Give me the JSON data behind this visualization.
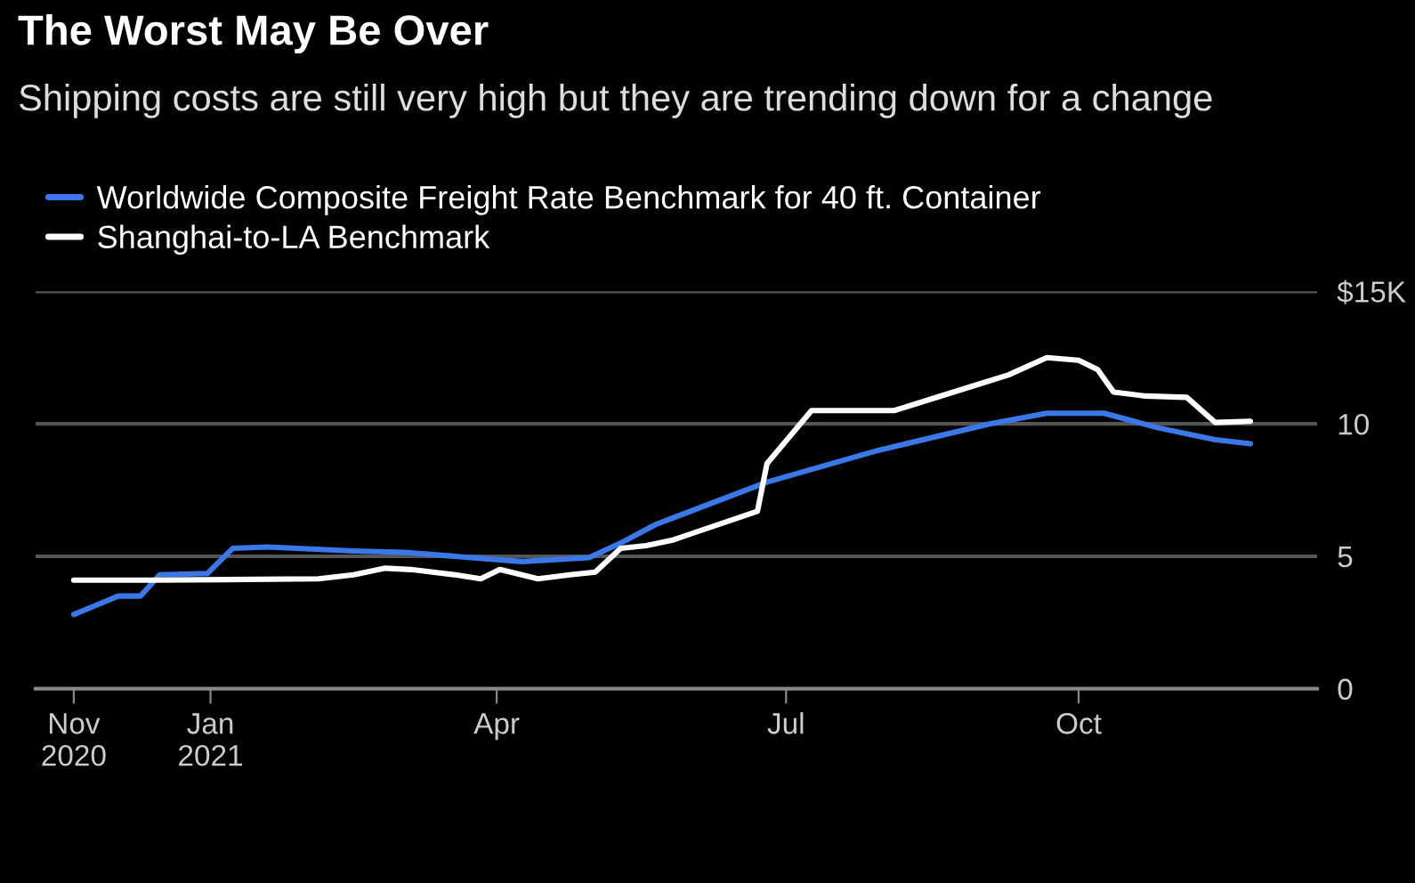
{
  "chart_data": {
    "type": "line",
    "title": "The Worst May Be Over",
    "subtitle": "Shipping costs are still very high but they are trending down for a change",
    "series": [
      {
        "name": "Worldwide Composite Freight Rate Benchmark for 40 ft. Container",
        "color": "#3a78e8",
        "x": [
          "2020-11-19",
          "2020-11-25",
          "2020-12-03",
          "2020-12-10",
          "2020-12-16",
          "2020-12-31",
          "2021-01-08",
          "2021-01-19",
          "2021-02-15",
          "2021-03-03",
          "2021-03-24",
          "2021-04-09",
          "2021-04-30",
          "2021-05-10",
          "2021-05-21",
          "2021-06-25",
          "2021-07-30",
          "2021-09-03",
          "2021-09-21",
          "2021-10-09",
          "2021-10-26",
          "2021-11-13",
          "2021-11-24"
        ],
        "values": [
          2.8,
          3.1,
          3.5,
          3.5,
          4.3,
          4.35,
          5.3,
          5.35,
          5.2,
          5.15,
          4.95,
          4.8,
          4.95,
          5.5,
          6.2,
          7.8,
          9.0,
          10.0,
          10.4,
          10.4,
          9.85,
          9.4,
          9.25
        ]
      },
      {
        "name": "Shanghai-to-LA Benchmark",
        "color": "#ffffff",
        "x": [
          "2020-11-19",
          "2020-12-14",
          "2021-02-04",
          "2021-02-15",
          "2021-02-25",
          "2021-03-05",
          "2021-03-19",
          "2021-03-27",
          "2021-04-02",
          "2021-04-14",
          "2021-04-24",
          "2021-05-02",
          "2021-05-10",
          "2021-05-18",
          "2021-05-26",
          "2021-06-22",
          "2021-06-25",
          "2021-07-09",
          "2021-08-04",
          "2021-08-28",
          "2021-09-09",
          "2021-09-21",
          "2021-10-01",
          "2021-10-07",
          "2021-10-12",
          "2021-10-22",
          "2021-11-04",
          "2021-11-13",
          "2021-11-24"
        ],
        "values": [
          4.1,
          4.1,
          4.15,
          4.3,
          4.55,
          4.5,
          4.3,
          4.15,
          4.5,
          4.15,
          4.3,
          4.4,
          5.3,
          5.4,
          5.6,
          6.7,
          8.5,
          10.5,
          10.5,
          11.4,
          11.85,
          12.5,
          12.4,
          12.05,
          11.2,
          11.05,
          11.0,
          10.05,
          10.1
        ]
      }
    ],
    "xlim": [
      "2020-11-07",
      "2021-12-15"
    ],
    "xticks": [
      {
        "value": "2020-11-19",
        "label": "Nov\n2020"
      },
      {
        "value": "2021-01-01",
        "label": "Jan\n2021"
      },
      {
        "value": "2021-04-01",
        "label": "Apr"
      },
      {
        "value": "2021-07-01",
        "label": "Jul"
      },
      {
        "value": "2021-10-01",
        "label": "Oct"
      }
    ],
    "ylim": [
      0,
      15
    ],
    "yticks": [
      0,
      5,
      10,
      {
        "value": 15,
        "label": "$15K"
      }
    ],
    "grid": "y",
    "legend": "top left",
    "marker": "none",
    "line_style": "solid"
  }
}
